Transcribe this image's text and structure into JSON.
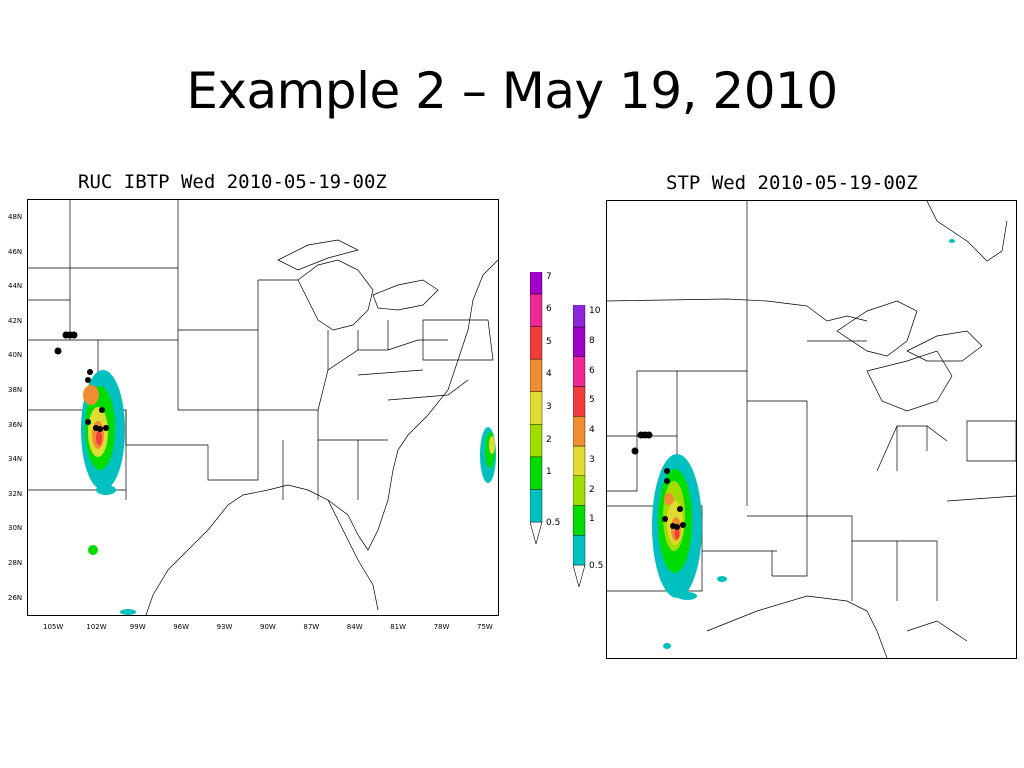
{
  "slide": {
    "title": "Example 2 – May 19, 2010"
  },
  "left_panel": {
    "title": "RUC IBTP Wed 2010-05-19-00Z",
    "lat_labels": [
      "48N",
      "46N",
      "44N",
      "42N",
      "40N",
      "38N",
      "36N",
      "34N",
      "32N",
      "30N",
      "28N",
      "26N"
    ],
    "lon_labels": [
      "105W",
      "102W",
      "99W",
      "96W",
      "93W",
      "90W",
      "87W",
      "84W",
      "81W",
      "78W",
      "75W"
    ],
    "colorbar": {
      "levels": [
        "0.5",
        "1",
        "2",
        "3",
        "4",
        "5",
        "6",
        "7"
      ],
      "colors": [
        "#00c0c0",
        "#00dc00",
        "#a0dc00",
        "#e0dc32",
        "#f08c32",
        "#f03c3c",
        "#f02896",
        "#a000c8",
        "#8c28dc"
      ]
    }
  },
  "right_panel": {
    "title": "STP Wed 2010-05-19-00Z",
    "colorbar": {
      "levels": [
        "0.5",
        "1",
        "2",
        "3",
        "4",
        "5",
        "6",
        "8",
        "10"
      ],
      "colors": [
        "#00c0c0",
        "#00dc00",
        "#a0dc00",
        "#e0dc32",
        "#f08c32",
        "#f03c3c",
        "#f02896",
        "#a000c8",
        "#8c28dc",
        "#a0a0a0"
      ]
    }
  }
}
